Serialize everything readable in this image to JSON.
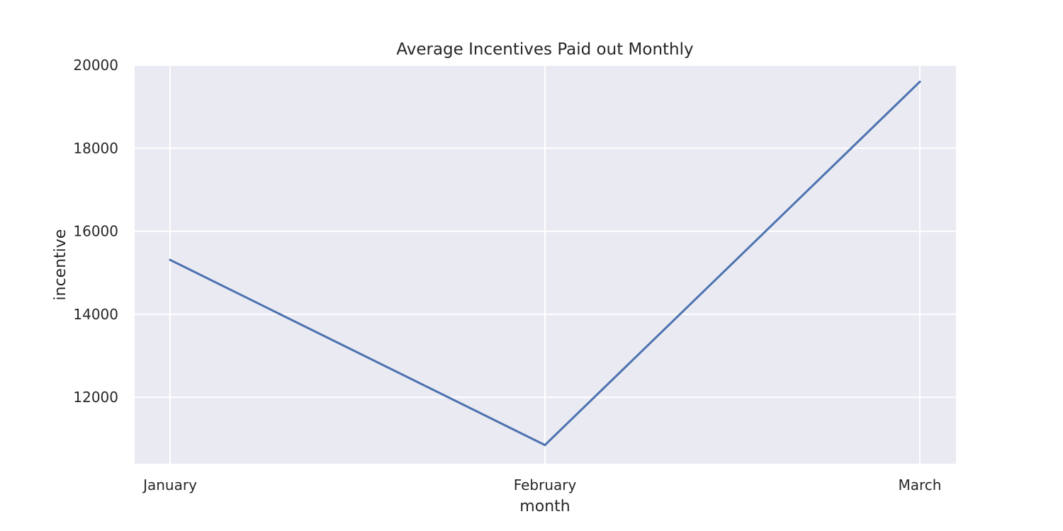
{
  "chart_data": {
    "type": "line",
    "title": "Average Incentives Paid out Monthly",
    "xlabel": "month",
    "ylabel": "incentive",
    "categories": [
      "January",
      "February",
      "March"
    ],
    "series": [
      {
        "values": [
          15310,
          10850,
          19600
        ]
      }
    ],
    "ylim": [
      10400,
      20000
    ],
    "yticks": [
      12000,
      14000,
      16000,
      18000,
      20000
    ],
    "grid": true,
    "colors": {
      "plot_background": "#eaeaf2",
      "grid": "#ffffff",
      "line": "#4c72b0"
    }
  }
}
